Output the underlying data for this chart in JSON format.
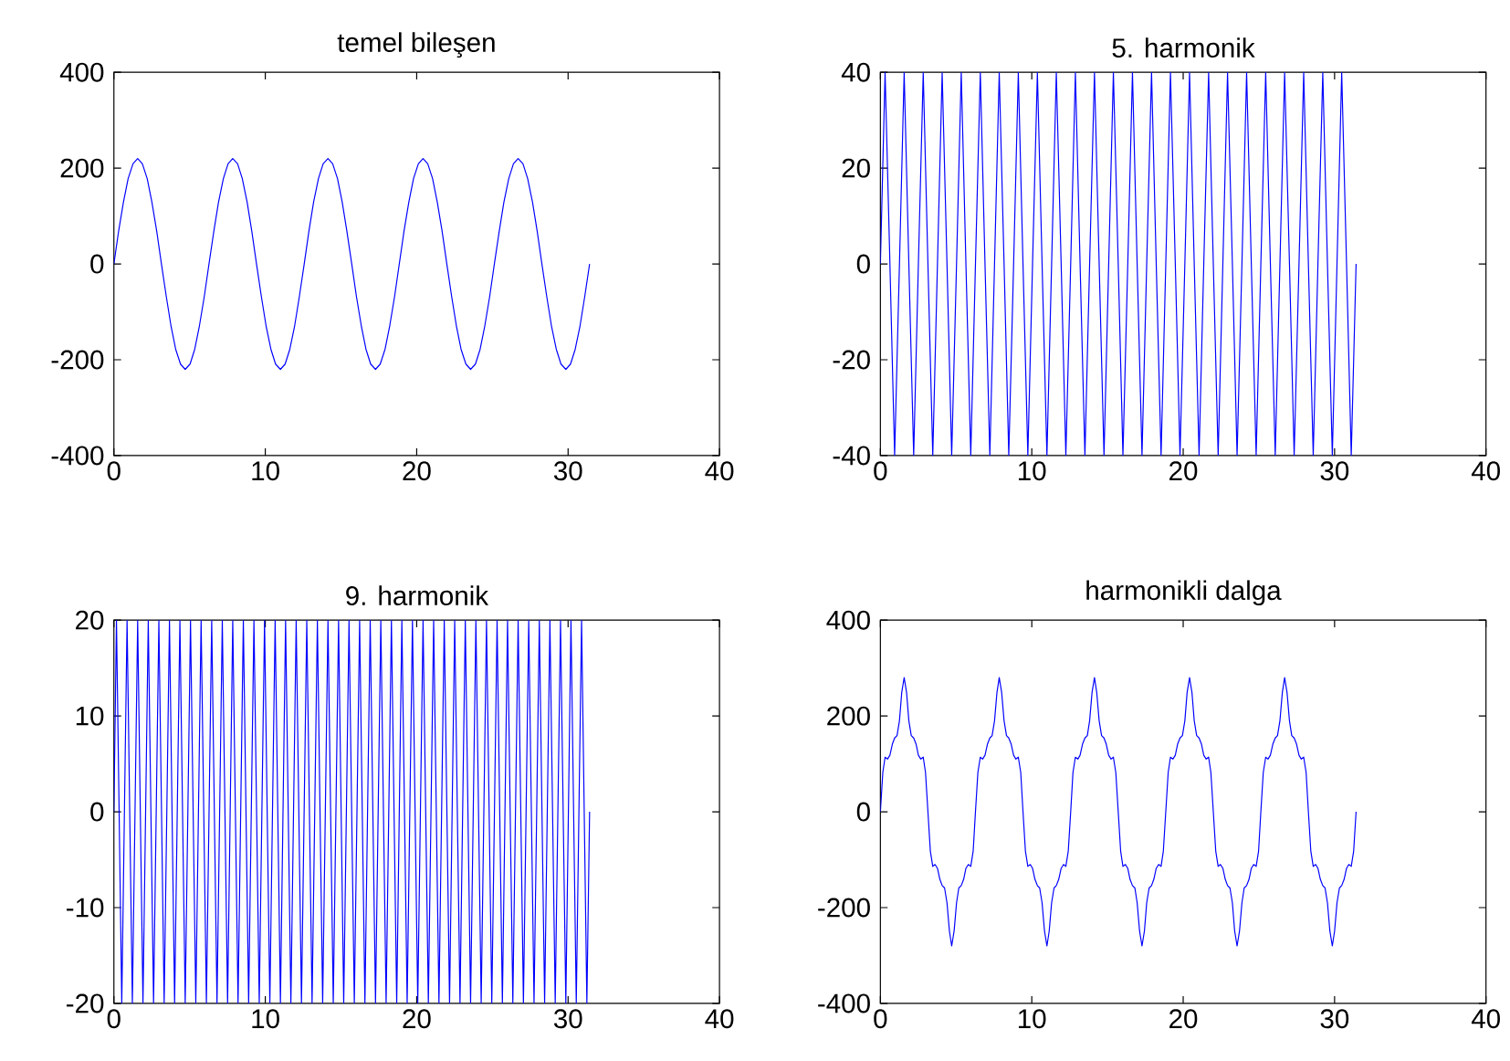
{
  "chart_data": [
    {
      "type": "line",
      "title": "temel bileşen",
      "color": "#0000ff",
      "line_style": "solid",
      "xlim": [
        0,
        40
      ],
      "ylim": [
        -400,
        400
      ],
      "xticks": [
        0,
        10,
        20,
        30,
        40
      ],
      "yticks": [
        -400,
        -200,
        0,
        200,
        400
      ],
      "x": [
        0,
        0.31,
        0.63,
        0.94,
        1.26,
        1.57,
        1.88,
        2.2,
        2.51,
        2.83,
        3.14,
        3.46,
        3.77,
        4.08,
        4.4,
        4.71,
        5.03,
        5.34,
        5.65,
        5.97,
        6.28,
        6.6,
        6.91,
        7.23,
        7.54,
        7.85,
        8.17,
        8.48,
        8.8,
        9.11,
        9.42,
        9.74,
        10.05,
        10.37,
        10.68,
        11.0,
        11.31,
        11.62,
        11.94,
        12.25,
        12.57,
        12.88,
        13.19,
        13.51,
        13.82,
        14.14,
        14.45,
        14.77,
        15.08,
        15.39,
        15.71,
        16.02,
        16.34,
        16.65,
        16.96,
        17.28,
        17.59,
        17.91,
        18.22,
        18.54,
        18.85,
        19.16,
        19.48,
        19.79,
        20.11,
        20.42,
        20.73,
        21.05,
        21.36,
        21.68,
        21.99,
        22.31,
        22.62,
        22.93,
        23.25,
        23.56,
        23.88,
        24.19,
        24.5,
        24.82,
        25.13,
        25.45,
        25.76,
        26.08,
        26.39,
        26.7,
        27.02,
        27.33,
        27.65,
        27.96,
        28.27,
        28.59,
        28.9,
        29.22,
        29.53,
        29.85,
        30.16,
        30.47,
        30.79,
        31.1,
        31.42
      ],
      "values": [
        0,
        68,
        129,
        178,
        209,
        220,
        209,
        178,
        129,
        68,
        0,
        -68,
        -129,
        -178,
        -209,
        -220,
        -209,
        -178,
        -129,
        -68,
        0,
        68,
        129,
        178,
        209,
        220,
        209,
        178,
        129,
        68,
        0,
        -68,
        -129,
        -178,
        -209,
        -220,
        -209,
        -178,
        -129,
        -68,
        0,
        68,
        129,
        178,
        209,
        220,
        209,
        178,
        129,
        68,
        0,
        -68,
        -129,
        -178,
        -209,
        -220,
        -209,
        -178,
        -129,
        -68,
        0,
        68,
        129,
        178,
        209,
        220,
        209,
        178,
        129,
        68,
        0,
        -68,
        -129,
        -178,
        -209,
        -220,
        -209,
        -178,
        -129,
        -68,
        0,
        68,
        129,
        178,
        209,
        220,
        209,
        178,
        129,
        68,
        0,
        -68,
        -129,
        -178,
        -209,
        -220,
        -209,
        -178,
        -129,
        -68,
        0
      ]
    },
    {
      "type": "line",
      "title": "5. harmonik",
      "color": "#0000ff",
      "line_style": "solid",
      "xlim": [
        0,
        40
      ],
      "ylim": [
        -40,
        40
      ],
      "xticks": [
        0,
        10,
        20,
        30,
        40
      ],
      "yticks": [
        -40,
        -20,
        0,
        20,
        40
      ],
      "x": [
        0,
        0.31,
        0.63,
        0.94,
        1.26,
        1.57,
        1.88,
        2.2,
        2.51,
        2.83,
        3.14,
        3.46,
        3.77,
        4.08,
        4.4,
        4.71,
        5.03,
        5.34,
        5.65,
        5.97,
        6.28,
        6.6,
        6.91,
        7.23,
        7.54,
        7.85,
        8.17,
        8.48,
        8.8,
        9.11,
        9.42,
        9.74,
        10.05,
        10.37,
        10.68,
        11.0,
        11.31,
        11.62,
        11.94,
        12.25,
        12.57,
        12.88,
        13.19,
        13.51,
        13.82,
        14.14,
        14.45,
        14.77,
        15.08,
        15.39,
        15.71,
        16.02,
        16.34,
        16.65,
        16.96,
        17.28,
        17.59,
        17.91,
        18.22,
        18.54,
        18.85,
        19.16,
        19.48,
        19.79,
        20.11,
        20.42,
        20.73,
        21.05,
        21.36,
        21.68,
        21.99,
        22.31,
        22.62,
        22.93,
        23.25,
        23.56,
        23.88,
        24.19,
        24.5,
        24.82,
        25.13,
        25.45,
        25.76,
        26.08,
        26.39,
        26.7,
        27.02,
        27.33,
        27.65,
        27.96,
        28.27,
        28.59,
        28.9,
        29.22,
        29.53,
        29.85,
        30.16,
        30.47,
        30.79,
        31.1,
        31.42
      ],
      "values": [
        0,
        40,
        0,
        -40,
        0,
        40,
        0,
        -40,
        0,
        40,
        0,
        -40,
        0,
        40,
        0,
        -40,
        0,
        40,
        0,
        -40,
        0,
        40,
        0,
        -40,
        0,
        40,
        0,
        -40,
        0,
        40,
        0,
        -40,
        0,
        40,
        0,
        -40,
        0,
        40,
        0,
        -40,
        0,
        40,
        0,
        -40,
        0,
        40,
        0,
        -40,
        0,
        40,
        0,
        -40,
        0,
        40,
        0,
        -40,
        0,
        40,
        0,
        -40,
        0,
        40,
        0,
        -40,
        0,
        40,
        0,
        -40,
        0,
        40,
        0,
        -40,
        0,
        40,
        0,
        -40,
        0,
        40,
        0,
        -40,
        0,
        40,
        0,
        -40,
        0,
        40,
        0,
        -40,
        0,
        40,
        0,
        -40,
        0,
        40,
        0,
        -40,
        0,
        40,
        0,
        -40,
        0
      ]
    },
    {
      "type": "line",
      "title": "9. harmonik",
      "color": "#0000ff",
      "line_style": "solid",
      "xlim": [
        0,
        40
      ],
      "ylim": [
        -20,
        20
      ],
      "xticks": [
        0,
        10,
        20,
        30,
        40
      ],
      "yticks": [
        -20,
        -10,
        0,
        10,
        20
      ],
      "x": [
        0,
        0.17,
        0.52,
        0.87,
        1.22,
        1.57,
        1.92,
        2.27,
        2.62,
        2.97,
        3.32,
        3.67,
        4.01,
        4.36,
        4.71,
        5.06,
        5.41,
        5.76,
        6.11,
        6.46,
        6.81,
        7.16,
        7.51,
        7.85,
        8.2,
        8.55,
        8.9,
        9.25,
        9.6,
        9.95,
        10.3,
        10.65,
        11.0,
        11.34,
        11.69,
        12.04,
        12.39,
        12.74,
        13.09,
        13.44,
        13.79,
        14.14,
        14.49,
        14.84,
        15.18,
        15.53,
        15.88,
        16.23,
        16.58,
        16.93,
        17.28,
        17.63,
        17.98,
        18.33,
        18.68,
        19.02,
        19.37,
        19.72,
        20.07,
        20.42,
        20.77,
        21.12,
        21.47,
        21.82,
        22.17,
        22.51,
        22.86,
        23.21,
        23.56,
        23.91,
        24.26,
        24.61,
        24.96,
        25.31,
        25.66,
        26.0,
        26.35,
        26.7,
        27.05,
        27.4,
        27.75,
        28.1,
        28.45,
        28.8,
        29.15,
        29.5,
        29.85,
        30.19,
        30.54,
        30.89,
        31.24,
        31.42
      ],
      "values": [
        0,
        20,
        -20,
        20,
        -20,
        20,
        -20,
        20,
        -20,
        20,
        -20,
        20,
        -20,
        20,
        -20,
        20,
        -20,
        20,
        -20,
        20,
        -20,
        20,
        -20,
        20,
        -20,
        20,
        -20,
        20,
        -20,
        20,
        -20,
        20,
        -20,
        20,
        -20,
        20,
        -20,
        20,
        -20,
        20,
        -20,
        20,
        -20,
        20,
        -20,
        20,
        -20,
        20,
        -20,
        20,
        -20,
        20,
        -20,
        20,
        -20,
        20,
        -20,
        20,
        -20,
        20,
        -20,
        20,
        -20,
        20,
        -20,
        20,
        -20,
        20,
        -20,
        20,
        -20,
        20,
        -20,
        20,
        -20,
        20,
        -20,
        20,
        -20,
        20,
        -20,
        20,
        -20,
        20,
        -20,
        20,
        -20,
        20,
        -20,
        20,
        -20,
        0
      ]
    },
    {
      "type": "line",
      "title": "harmonikli dalga",
      "color": "#0000ff",
      "line_style": "solid",
      "xlim": [
        0,
        40
      ],
      "ylim": [
        -400,
        400
      ],
      "xticks": [
        0,
        10,
        20,
        30,
        40
      ],
      "yticks": [
        -400,
        -200,
        0,
        200,
        400
      ],
      "x": [
        0,
        0.16,
        0.31,
        0.47,
        0.63,
        0.79,
        0.94,
        1.1,
        1.26,
        1.41,
        1.57,
        1.73,
        1.88,
        2.04,
        2.2,
        2.36,
        2.51,
        2.67,
        2.83,
        2.98,
        3.14,
        3.3,
        3.46,
        3.61,
        3.77,
        3.93,
        4.08,
        4.24,
        4.4,
        4.56,
        4.71,
        4.87,
        5.03,
        5.18,
        5.34,
        5.5,
        5.65,
        5.81,
        5.97,
        6.13,
        6.28,
        6.44,
        6.6,
        6.75,
        6.91,
        7.07,
        7.23,
        7.38,
        7.54,
        7.7,
        7.85,
        8.01,
        8.17,
        8.33,
        8.48,
        8.64,
        8.8,
        8.95,
        9.11,
        9.27,
        9.42,
        9.58,
        9.74,
        9.9,
        10.05,
        10.21,
        10.37,
        10.52,
        10.68,
        10.84,
        11.0,
        11.15,
        11.31,
        11.47,
        11.62,
        11.78,
        11.94,
        12.1,
        12.25,
        12.41,
        12.57,
        12.72,
        12.88,
        13.04,
        13.19,
        13.35,
        13.51,
        13.67,
        13.82,
        13.98,
        14.14,
        14.29,
        14.45,
        14.61,
        14.77,
        14.92,
        15.08,
        15.24,
        15.39,
        15.55,
        15.71,
        15.87,
        16.02,
        16.18,
        16.34,
        16.49,
        16.65,
        16.81,
        16.96,
        17.12,
        17.28,
        17.44,
        17.59,
        17.75,
        17.91,
        18.06,
        18.22,
        18.38,
        18.54,
        18.69,
        18.85,
        19.01,
        19.16,
        19.32,
        19.48,
        19.63,
        19.79,
        19.95,
        20.11,
        20.26,
        20.42,
        20.58,
        20.73,
        20.89,
        21.05,
        21.21,
        21.36,
        21.52,
        21.68,
        21.83,
        21.99,
        22.15,
        22.31,
        22.46,
        22.62,
        22.78,
        22.93,
        23.09,
        23.25,
        23.4,
        23.56,
        23.72,
        23.88,
        24.03,
        24.19,
        24.35,
        24.5,
        24.66,
        24.82,
        24.98,
        25.13,
        25.29,
        25.45,
        25.6,
        25.76,
        25.92,
        26.08,
        26.23,
        26.39,
        26.55,
        26.7,
        26.86,
        27.02,
        27.17,
        27.33,
        27.49,
        27.65,
        27.8,
        27.96,
        28.12,
        28.27,
        28.43,
        28.59,
        28.75,
        28.9,
        29.06,
        29.22,
        29.37,
        29.53,
        29.69,
        29.85,
        30.0,
        30.16,
        30.32,
        30.47,
        30.63,
        30.79,
        30.94,
        31.1,
        31.26,
        31.42
      ],
      "values": [
        0,
        82,
        114,
        110,
        118,
        141,
        154,
        159,
        190,
        249,
        280,
        249,
        190,
        159,
        154,
        141,
        118,
        110,
        114,
        82,
        0,
        -82,
        -114,
        -110,
        -118,
        -141,
        -154,
        -159,
        -190,
        -249,
        -280,
        -249,
        -190,
        -159,
        -154,
        -141,
        -118,
        -110,
        -114,
        -82,
        0,
        82,
        114,
        110,
        118,
        141,
        154,
        159,
        190,
        249,
        280,
        249,
        190,
        159,
        154,
        141,
        118,
        110,
        114,
        82,
        0,
        -82,
        -114,
        -110,
        -118,
        -141,
        -154,
        -159,
        -190,
        -249,
        -280,
        -249,
        -190,
        -159,
        -154,
        -141,
        -118,
        -110,
        -114,
        -82,
        0,
        82,
        114,
        110,
        118,
        141,
        154,
        159,
        190,
        249,
        280,
        249,
        190,
        159,
        154,
        141,
        118,
        110,
        114,
        82,
        0,
        -82,
        -114,
        -110,
        -118,
        -141,
        -154,
        -159,
        -190,
        -249,
        -280,
        -249,
        -190,
        -159,
        -154,
        -141,
        -118,
        -110,
        -114,
        -82,
        0,
        82,
        114,
        110,
        118,
        141,
        154,
        159,
        190,
        249,
        280,
        249,
        190,
        159,
        154,
        141,
        118,
        110,
        114,
        82,
        0,
        -82,
        -114,
        -110,
        -118,
        -141,
        -154,
        -159,
        -190,
        -249,
        -280,
        -249,
        -190,
        -159,
        -154,
        -141,
        -118,
        -110,
        -114,
        -82,
        0,
        82,
        114,
        110,
        118,
        141,
        154,
        159,
        190,
        249,
        280,
        249,
        190,
        159,
        154,
        141,
        118,
        110,
        114,
        82,
        0,
        -82,
        -114,
        -110,
        -118,
        -141,
        -154,
        -159,
        -190,
        -249,
        -280,
        -249,
        -190,
        -159,
        -154,
        -141,
        -118,
        -110,
        -114,
        -82,
        0
      ]
    }
  ]
}
